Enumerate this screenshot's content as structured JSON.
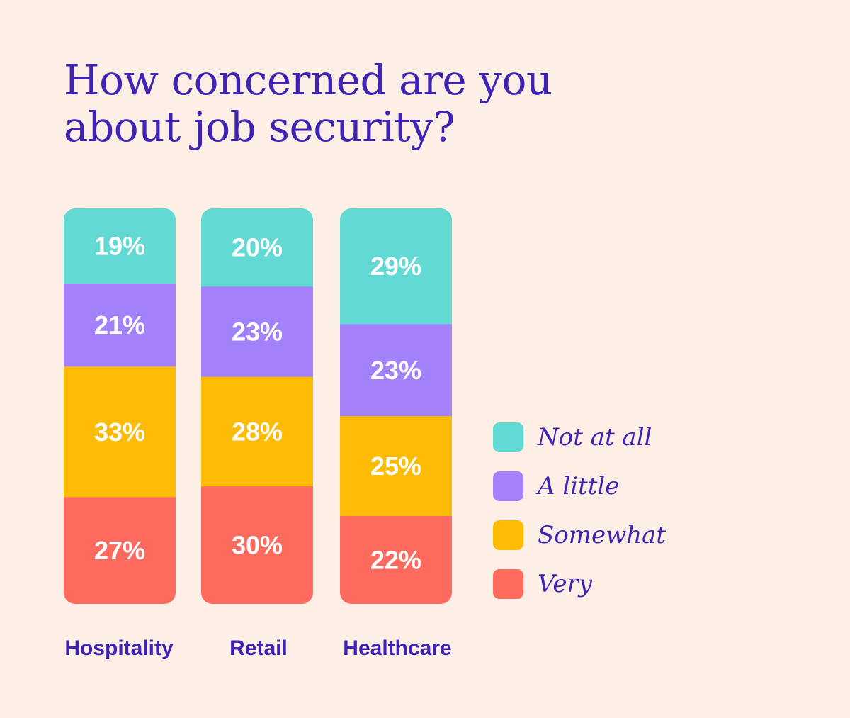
{
  "title_lines": [
    "How concerned are you",
    "about job security?"
  ],
  "colors": {
    "background": "#fdefe6",
    "text": "#3f23b4",
    "not_at_all": "#62d9d3",
    "a_little": "#a381fb",
    "somewhat": "#fcbc05",
    "very": "#fe6b5e"
  },
  "legend": [
    {
      "label": "Not at all",
      "color": "#62d9d3"
    },
    {
      "label": "A little",
      "color": "#a381fb"
    },
    {
      "label": "Somewhat",
      "color": "#fcbc05"
    },
    {
      "label": "Very",
      "color": "#fe6b5e"
    }
  ],
  "chart_data": {
    "type": "bar",
    "stacked": true,
    "title": "How concerned are you about job security?",
    "categories": [
      "Hospitality",
      "Retail",
      "Healthcare"
    ],
    "series": [
      {
        "name": "Not at all",
        "color": "#62d9d3",
        "values": [
          19,
          20,
          29
        ],
        "labels": [
          "19%",
          "20%",
          "29%"
        ]
      },
      {
        "name": "A little",
        "color": "#a381fb",
        "values": [
          21,
          23,
          23
        ],
        "labels": [
          "21%",
          "23%",
          "23%"
        ]
      },
      {
        "name": "Somewhat",
        "color": "#fcbc05",
        "values": [
          33,
          28,
          25
        ],
        "labels": [
          "33%",
          "28%",
          "25%"
        ]
      },
      {
        "name": "Very",
        "color": "#fe6b5e",
        "values": [
          27,
          30,
          22
        ],
        "labels": [
          "27%",
          "30%",
          "22%"
        ]
      }
    ],
    "unit": "%",
    "ylim": [
      0,
      100
    ],
    "grid": false,
    "legend_position": "right"
  }
}
